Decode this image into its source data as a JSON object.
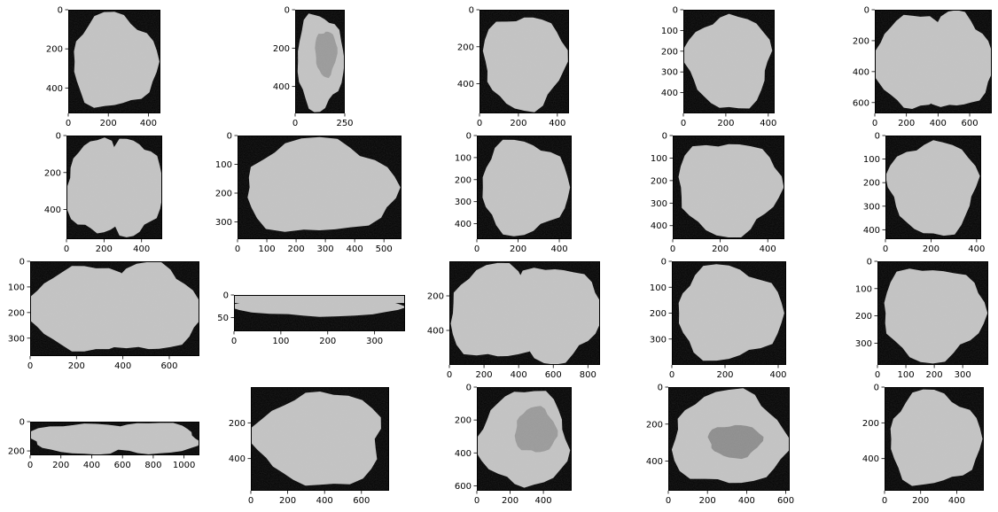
{
  "figure": {
    "rows": 4,
    "cols": 5,
    "background": "#ffffff",
    "cell_fg": "#c4c4c4",
    "cell_bg": "#000000"
  },
  "chart_data": [
    {
      "type": "image",
      "xlim": [
        0,
        460
      ],
      "ylim": [
        530,
        0
      ],
      "xticks": [
        0,
        200,
        400
      ],
      "yticks": [
        0,
        200,
        400
      ],
      "blob": "single"
    },
    {
      "type": "image",
      "xlim": [
        0,
        250
      ],
      "ylim": [
        540,
        0
      ],
      "xticks": [
        0,
        250
      ],
      "yticks": [
        0,
        200,
        400
      ],
      "blob": "crescent"
    },
    {
      "type": "image",
      "xlim": [
        0,
        460
      ],
      "ylim": [
        560,
        0
      ],
      "xticks": [
        0,
        200,
        400
      ],
      "yticks": [
        0,
        200,
        400
      ],
      "blob": "single"
    },
    {
      "type": "image",
      "xlim": [
        0,
        430
      ],
      "ylim": [
        500,
        0
      ],
      "xticks": [
        0,
        200,
        400
      ],
      "yticks": [
        0,
        100,
        200,
        300,
        400
      ],
      "blob": "single"
    },
    {
      "type": "image",
      "xlim": [
        0,
        740
      ],
      "ylim": [
        670,
        0
      ],
      "xticks": [
        0,
        200,
        400,
        600
      ],
      "yticks": [
        0,
        200,
        400,
        600
      ],
      "blob": "double"
    },
    {
      "type": "image",
      "xlim": [
        0,
        510
      ],
      "ylim": [
        560,
        0
      ],
      "xticks": [
        0,
        200,
        400
      ],
      "yticks": [
        0,
        200,
        400
      ],
      "blob": "double"
    },
    {
      "type": "image",
      "xlim": [
        0,
        560
      ],
      "ylim": [
        360,
        0
      ],
      "xticks": [
        0,
        100,
        200,
        300,
        400,
        500
      ],
      "yticks": [
        0,
        100,
        200,
        300
      ],
      "blob": "single"
    },
    {
      "type": "image",
      "xlim": [
        0,
        460
      ],
      "ylim": [
        470,
        0
      ],
      "xticks": [
        0,
        200,
        400
      ],
      "yticks": [
        0,
        100,
        200,
        300,
        400
      ],
      "blob": "single"
    },
    {
      "type": "image",
      "xlim": [
        0,
        470
      ],
      "ylim": [
        460,
        0
      ],
      "xticks": [
        0,
        200,
        400
      ],
      "yticks": [
        0,
        100,
        200,
        300,
        400
      ],
      "blob": "single"
    },
    {
      "type": "image",
      "xlim": [
        0,
        420
      ],
      "ylim": [
        440,
        0
      ],
      "xticks": [
        0,
        200,
        400
      ],
      "yticks": [
        0,
        100,
        200,
        300,
        400
      ],
      "blob": "single"
    },
    {
      "type": "image",
      "xlim": [
        0,
        730
      ],
      "ylim": [
        370,
        0
      ],
      "xticks": [
        0,
        200,
        400,
        600
      ],
      "yticks": [
        0,
        100,
        200,
        300
      ],
      "blob": "double"
    },
    {
      "type": "image",
      "xlim": [
        0,
        365
      ],
      "ylim": [
        80,
        0
      ],
      "xticks": [
        0,
        100,
        200,
        300
      ],
      "yticks": [
        0,
        50
      ],
      "blob": "strip"
    },
    {
      "type": "image",
      "xlim": [
        0,
        870
      ],
      "ylim": [
        600,
        0
      ],
      "xticks": [
        0,
        200,
        400,
        600,
        800
      ],
      "yticks": [
        200,
        400
      ],
      "blob": "double"
    },
    {
      "type": "image",
      "xlim": [
        0,
        430
      ],
      "ylim": [
        400,
        0
      ],
      "xticks": [
        0,
        200,
        400
      ],
      "yticks": [
        0,
        100,
        200,
        300
      ],
      "blob": "single"
    },
    {
      "type": "image",
      "xlim": [
        0,
        390
      ],
      "ylim": [
        380,
        0
      ],
      "xticks": [
        0,
        100,
        200,
        300
      ],
      "yticks": [
        0,
        100,
        200,
        300
      ],
      "blob": "single"
    },
    {
      "type": "image",
      "xlim": [
        0,
        1100
      ],
      "ylim": [
        230,
        0
      ],
      "xticks": [
        0,
        200,
        400,
        600,
        800,
        1000
      ],
      "yticks": [
        0,
        200
      ],
      "blob": "double"
    },
    {
      "type": "image",
      "xlim": [
        0,
        750
      ],
      "ylim": [
        580,
        0
      ],
      "xticks": [
        0,
        200,
        400,
        600
      ],
      "yticks": [
        200,
        400
      ],
      "blob": "single"
    },
    {
      "type": "image",
      "xlim": [
        0,
        570
      ],
      "ylim": [
        630,
        0
      ],
      "xticks": [
        0,
        200,
        400
      ],
      "yticks": [
        0,
        200,
        400,
        600
      ],
      "blob": "crescent"
    },
    {
      "type": "image",
      "xlim": [
        0,
        620
      ],
      "ylim": [
        560,
        0
      ],
      "xticks": [
        0,
        200,
        400,
        600
      ],
      "yticks": [
        0,
        200,
        400
      ],
      "blob": "ring"
    },
    {
      "type": "image",
      "xlim": [
        0,
        550
      ],
      "ylim": [
        580,
        0
      ],
      "xticks": [
        0,
        200,
        400
      ],
      "yticks": [
        0,
        200,
        400
      ],
      "blob": "single"
    }
  ]
}
